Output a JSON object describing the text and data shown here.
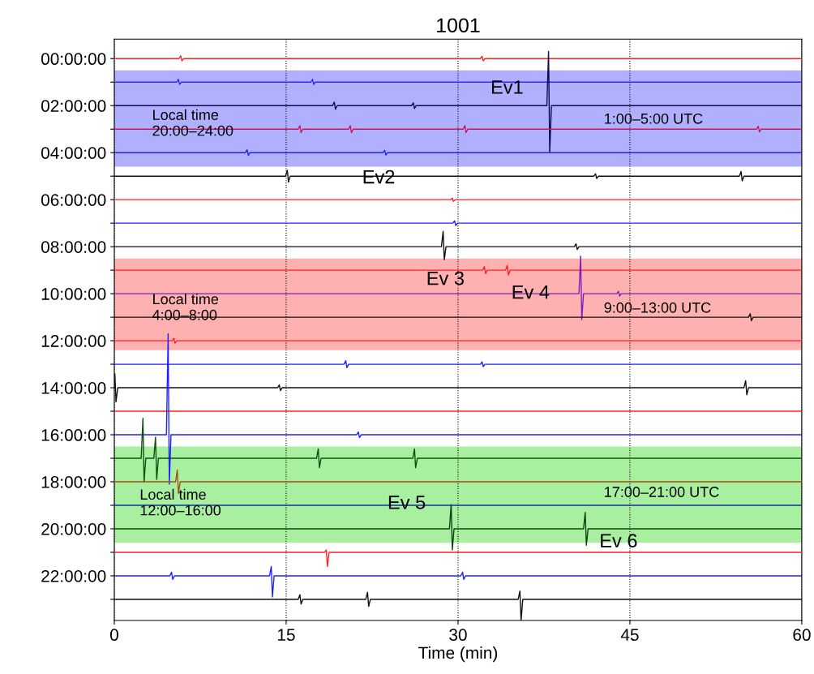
{
  "chart_data": {
    "type": "line",
    "title": "1001",
    "xlabel": "Time (min)",
    "xlim": [
      0,
      60
    ],
    "xticks": [
      0,
      15,
      30,
      45,
      60
    ],
    "ylim": [
      23.9,
      -0.83
    ],
    "yticks": [
      {
        "value": 0,
        "label": "00:00:00"
      },
      {
        "value": 1,
        "label": null
      },
      {
        "value": 2,
        "label": "02:00:00"
      },
      {
        "value": 3,
        "label": null
      },
      {
        "value": 4,
        "label": "04:00:00"
      },
      {
        "value": 5,
        "label": null
      },
      {
        "value": 6,
        "label": "06:00:00"
      },
      {
        "value": 7,
        "label": null
      },
      {
        "value": 8,
        "label": "08:00:00"
      },
      {
        "value": 9,
        "label": null
      },
      {
        "value": 10,
        "label": "10:00:00"
      },
      {
        "value": 11,
        "label": null
      },
      {
        "value": 12,
        "label": "12:00:00"
      },
      {
        "value": 13,
        "label": null
      },
      {
        "value": 14,
        "label": "14:00:00"
      },
      {
        "value": 15,
        "label": null
      },
      {
        "value": 16,
        "label": "16:00:00"
      },
      {
        "value": 17,
        "label": null
      },
      {
        "value": 18,
        "label": "18:00:00"
      },
      {
        "value": 19,
        "label": null
      },
      {
        "value": 20,
        "label": "20:00:00"
      },
      {
        "value": 21,
        "label": null
      },
      {
        "value": 22,
        "label": "22:00:00"
      },
      {
        "value": 23,
        "label": null
      }
    ],
    "grid": "x",
    "marker": "none",
    "line_style": "solid",
    "bands": [
      {
        "axis": "y",
        "from": 0.5,
        "to": 4.6,
        "color": "#b0b0ff"
      },
      {
        "axis": "y",
        "from": 8.5,
        "to": 12.4,
        "color": "#ffb0b0"
      },
      {
        "axis": "y",
        "from": 16.5,
        "to": 20.6,
        "color": "#a8f0a0"
      }
    ],
    "annotations": [
      {
        "text": "Ev1",
        "x": 37.75,
        "y": 2
      },
      {
        "text": "Ev2",
        "x": 23.6,
        "y": 3.9
      },
      {
        "text": "Ev 3",
        "x": 28.7,
        "y": 8.55
      },
      {
        "text": "Ev 4",
        "x": 40.55,
        "y": 10
      },
      {
        "text": "Ev 5",
        "x": 29.25,
        "y": 20
      },
      {
        "text": "Ev 6",
        "x": 41.35,
        "y": 20
      },
      "Local time\n20:00–24:00",
      "Local time\n4:00–8:00",
      "Local time\n12:00–16:00",
      "1:00–5:00 UTC",
      "9:00–13:00 UTC",
      "17:00–21:00 UTC"
    ],
    "series": [
      {
        "color": "#ff2020",
        "x": [
          0,
          5.65,
          5.8,
          5.9,
          6.05,
          31.95,
          32.1,
          32.2,
          32.35,
          60
        ],
        "values": [
          0,
          0,
          -0.12,
          0.1,
          0,
          0,
          -0.1,
          0.1,
          0,
          0
        ]
      },
      {
        "color": "#2a2aff",
        "x": [
          0,
          5.45,
          5.6,
          5.7,
          5.85,
          17.15,
          17.3,
          17.4,
          17.55,
          60
        ],
        "values": [
          1,
          1,
          0.88,
          1.1,
          1,
          1,
          0.88,
          1.1,
          1,
          1
        ]
      },
      {
        "color": "#0a0a50",
        "x": [
          0,
          19.05,
          19.2,
          19.3,
          19.45,
          25.95,
          26.1,
          26.2,
          26.35,
          37.75,
          37.9,
          38.0,
          38.15,
          60
        ],
        "values": [
          2,
          2,
          1.85,
          2.15,
          2,
          2,
          1.88,
          2.12,
          2,
          2,
          -0.3,
          4.0,
          2,
          2
        ]
      },
      {
        "color": "#c8185c",
        "x": [
          0,
          16.05,
          16.2,
          16.3,
          16.45,
          20.45,
          20.6,
          20.7,
          20.85,
          30.45,
          30.6,
          30.7,
          30.85,
          56.05,
          56.2,
          56.3,
          56.45,
          60
        ],
        "values": [
          3,
          3,
          2.85,
          3.15,
          3,
          3,
          2.85,
          3.15,
          3,
          3,
          2.85,
          3.15,
          3,
          3,
          2.88,
          3.12,
          3,
          3
        ]
      },
      {
        "color": "#2020ff",
        "x": [
          0,
          11.45,
          11.6,
          11.7,
          11.85,
          23.45,
          23.6,
          23.7,
          23.85,
          60
        ],
        "values": [
          4,
          4,
          3.88,
          4.12,
          4,
          4,
          3.9,
          4.1,
          4,
          4
        ]
      },
      {
        "color": "#101010",
        "x": [
          0,
          14.95,
          15.1,
          15.2,
          15.35,
          41.85,
          42.0,
          42.1,
          42.25,
          54.55,
          54.7,
          54.8,
          54.95,
          60
        ],
        "values": [
          5,
          5,
          4.75,
          5.25,
          5,
          5,
          4.9,
          5.1,
          5,
          5,
          4.8,
          5.2,
          5,
          5
        ]
      },
      {
        "color": "#ff2020",
        "x": [
          0,
          29.35,
          29.5,
          29.6,
          29.75,
          60
        ],
        "values": [
          6,
          6,
          5.93,
          6.07,
          6,
          6
        ]
      },
      {
        "color": "#2020ff",
        "x": [
          0,
          29.55,
          29.7,
          29.8,
          29.95,
          60
        ],
        "values": [
          7,
          7,
          6.9,
          7.1,
          7,
          7
        ]
      },
      {
        "color": "#101010",
        "x": [
          0,
          28.55,
          28.7,
          28.8,
          28.95,
          40.15,
          40.3,
          40.4,
          40.55,
          60
        ],
        "values": [
          8,
          8,
          7.35,
          8.55,
          8,
          8,
          7.88,
          8.12,
          8,
          8
        ]
      },
      {
        "color": "#ff2020",
        "x": [
          0,
          32.15,
          32.3,
          32.4,
          32.55,
          34.15,
          34.3,
          34.4,
          34.55,
          60
        ],
        "values": [
          9,
          9,
          8.85,
          9.15,
          9,
          9,
          8.8,
          9.2,
          9,
          9
        ]
      },
      {
        "color": "#7a20c0",
        "x": [
          0,
          40.55,
          40.7,
          40.8,
          40.95,
          43.85,
          44.0,
          44.1,
          44.25,
          60
        ],
        "values": [
          10,
          10,
          8.4,
          11.1,
          10,
          10,
          9.9,
          10.1,
          10,
          10
        ]
      },
      {
        "color": "#101010",
        "x": [
          0,
          55.35,
          55.5,
          55.6,
          55.75,
          60
        ],
        "values": [
          11,
          11,
          10.85,
          11.15,
          11,
          11
        ]
      },
      {
        "color": "#ff2020",
        "x": [
          0,
          5.05,
          5.2,
          5.3,
          5.45,
          60
        ],
        "values": [
          12,
          12,
          11.9,
          12.1,
          12,
          12
        ]
      },
      {
        "color": "#2020ff",
        "x": [
          0,
          20.05,
          20.2,
          20.3,
          20.45,
          31.95,
          32.1,
          32.2,
          32.35,
          60
        ],
        "values": [
          13,
          13,
          12.85,
          13.15,
          13,
          13,
          12.9,
          13.1,
          13,
          13
        ]
      },
      {
        "color": "#101010",
        "x": [
          0,
          0.05,
          0.15,
          0.3,
          14.25,
          14.4,
          14.5,
          14.65,
          54.95,
          55.1,
          55.2,
          55.35,
          60
        ],
        "values": [
          14,
          13.4,
          14.6,
          14,
          14,
          13.88,
          14.12,
          14,
          14,
          13.7,
          14.3,
          14,
          14
        ]
      },
      {
        "color": "#ff2020",
        "x": [
          0,
          60
        ],
        "values": [
          15,
          15
        ]
      },
      {
        "color": "#2020ff",
        "x": [
          0,
          4.55,
          4.7,
          4.8,
          4.95,
          21.15,
          21.3,
          21.4,
          21.55,
          60
        ],
        "values": [
          16,
          16,
          11.7,
          18.1,
          16,
          16,
          15.88,
          16.12,
          16,
          16
        ]
      },
      {
        "color": "#105010",
        "x": [
          0,
          2.35,
          2.5,
          2.6,
          2.75,
          3.45,
          3.6,
          3.7,
          3.85,
          17.65,
          17.8,
          17.9,
          18.05,
          26.05,
          26.2,
          26.3,
          26.45,
          60
        ],
        "values": [
          17,
          17,
          15.3,
          18.0,
          17,
          17,
          16.1,
          17.9,
          17,
          17,
          16.6,
          17.4,
          17,
          17,
          16.6,
          17.4,
          17,
          17
        ]
      },
      {
        "color": "#a05010",
        "x": [
          0,
          5.35,
          5.5,
          5.6,
          5.75,
          60
        ],
        "values": [
          18,
          18,
          17.5,
          18.5,
          18,
          18
        ]
      },
      {
        "color": "#1030a0",
        "x": [
          0,
          60
        ],
        "values": [
          19,
          19
        ]
      },
      {
        "color": "#104010",
        "x": [
          0,
          29.25,
          29.4,
          29.5,
          29.65,
          40.95,
          41.1,
          41.2,
          41.35,
          60
        ],
        "values": [
          20,
          20,
          18.97,
          20.9,
          20,
          20,
          19.3,
          20.7,
          20,
          20
        ]
      },
      {
        "color": "#ff2020",
        "x": [
          0,
          18.35,
          18.5,
          18.6,
          18.75,
          60
        ],
        "values": [
          21,
          21,
          20.9,
          21.6,
          21,
          21
        ]
      },
      {
        "color": "#2020ff",
        "x": [
          0,
          4.85,
          5.0,
          5.1,
          5.25,
          13.55,
          13.7,
          13.8,
          13.95,
          30.25,
          30.4,
          30.5,
          30.65,
          60
        ],
        "values": [
          22,
          22,
          21.85,
          22.15,
          22,
          22,
          21.6,
          22.9,
          22,
          22,
          21.85,
          22.15,
          22,
          22
        ]
      },
      {
        "color": "#101010",
        "x": [
          0,
          16.05,
          16.2,
          16.3,
          16.45,
          21.95,
          22.1,
          22.2,
          22.35,
          35.25,
          35.4,
          35.5,
          35.65,
          60
        ],
        "values": [
          23,
          23,
          22.8,
          23.2,
          23,
          23,
          22.7,
          23.3,
          23,
          23,
          22.65,
          23.9,
          23,
          23
        ]
      }
    ]
  }
}
